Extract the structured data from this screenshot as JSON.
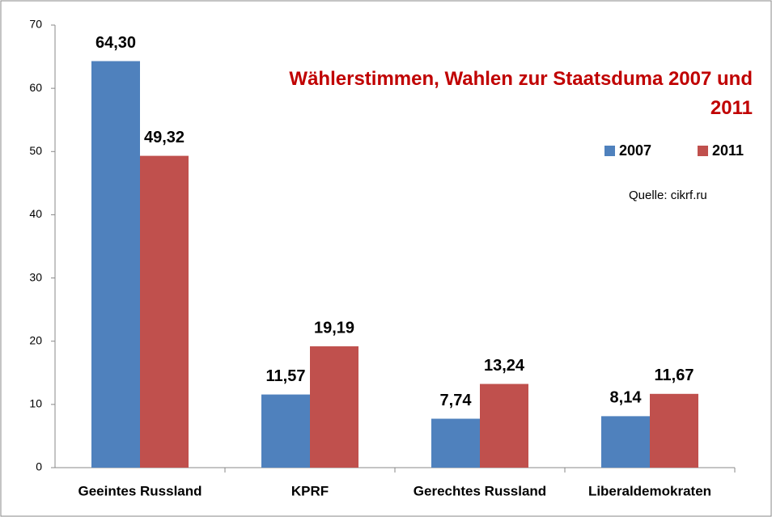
{
  "chart_data": {
    "type": "bar",
    "title": "Wählerstimmen, Wahlen zur Staatsduma 2007 und 2011",
    "annotation": "Quelle: cikrf.ru",
    "categories": [
      "Geeintes Russland",
      "KPRF",
      "Gerechtes Russland",
      "Liberaldemokraten"
    ],
    "series": [
      {
        "name": "2007",
        "color": "#4f81bd",
        "values": [
          64.3,
          11.57,
          7.74,
          8.14
        ],
        "value_labels": [
          "64,30",
          "11,57",
          "7,74",
          "8,14"
        ]
      },
      {
        "name": "2011",
        "color": "#c0504d",
        "values": [
          49.32,
          19.19,
          13.24,
          11.67
        ],
        "value_labels": [
          "49,32",
          "19,19",
          "13,24",
          "11,67"
        ]
      }
    ],
    "ylim": [
      0,
      70
    ],
    "yticks": [
      0,
      10,
      20,
      30,
      40,
      50,
      60,
      70
    ],
    "grid": false,
    "legend": "top-right",
    "title_color": "#c00000"
  }
}
